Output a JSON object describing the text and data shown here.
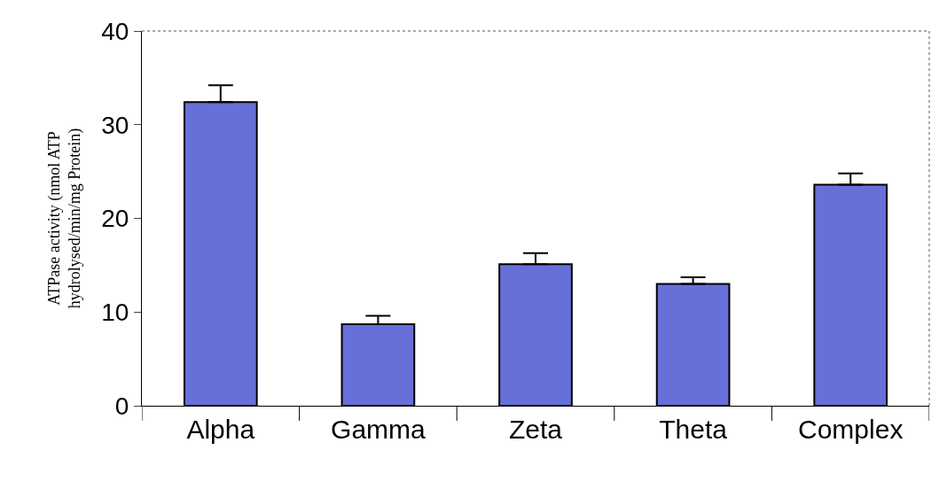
{
  "chart_data": {
    "type": "bar",
    "ylabel": "ATPase activity (nmol ATP\nhydrolysed/min/mg Protein)",
    "categories": [
      "Alpha",
      "Gamma",
      "Zeta",
      "Theta",
      "Complex"
    ],
    "values": [
      32.4,
      8.7,
      15.1,
      13.0,
      23.6
    ],
    "errors": [
      [
        32.4,
        34.2
      ],
      [
        8.7,
        9.6
      ],
      [
        15.1,
        16.3
      ],
      [
        13.0,
        13.7
      ],
      [
        23.6,
        24.8
      ]
    ],
    "color": "#6670d8",
    "ylim": [
      0,
      40
    ],
    "yticks": [
      0,
      10,
      20,
      30,
      40
    ],
    "legend": false
  }
}
